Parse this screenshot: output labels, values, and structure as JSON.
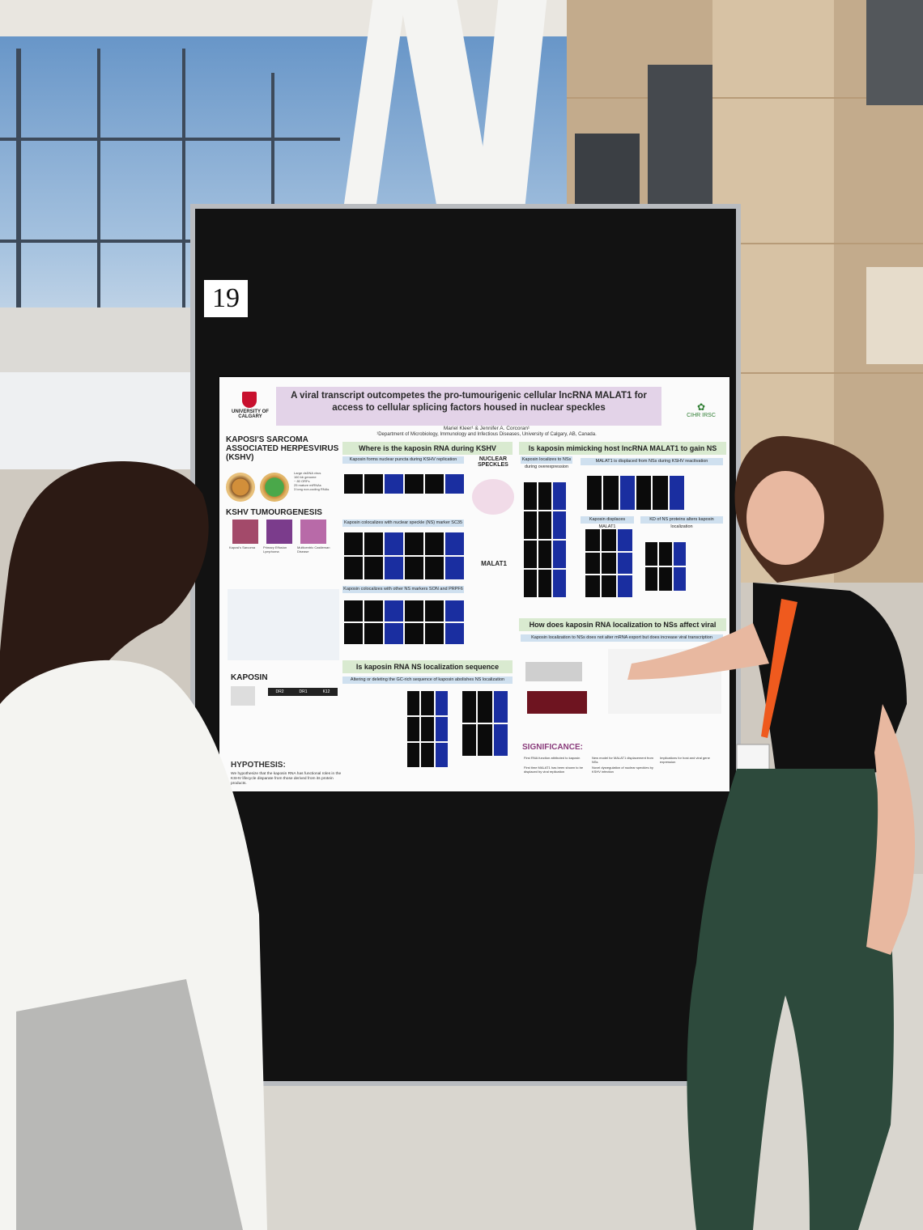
{
  "board": {
    "number": "19"
  },
  "poster": {
    "title": "A viral transcript outcompetes the pro-tumourigenic cellular lncRNA MALAT1 for access to cellular splicing factors housed in nuclear speckles",
    "authors": "Mariel Kleer¹ & Jennifer A. Corcoran¹",
    "department": "¹Department of Microbiology, Immunology and Infectious Diseases, University of Calgary, AB, Canada.",
    "logo_left": "UNIVERSITY OF CALGARY",
    "logo_right": "CIHR IRSC",
    "sections": {
      "kshv": "KAPOSI'S SARCOMA ASSOCIATED HERPESVIRUS (KSHV)",
      "tumourigenesis": "KSHV TUMOURGENESIS",
      "kaposin": "KAPOSIN",
      "hypothesis": "HYPOTHESIS:",
      "hypothesis_text": "We hypothesize that the kaposin RNA has functional roles in the KSHV lifecycle disparate from those derived from its protein products.",
      "where": "Where is the kaposin RNA during KSHV infection?",
      "mimicking": "Is kaposin mimicking host lncRNA MALAT1 to gain NS access?",
      "nuclear_speckles": "NUCLEAR SPECKLES",
      "malat1": "MALAT1",
      "localization": "How does kaposin RNA localization to NSs affect viral replication?",
      "sequence": "Is kaposin RNA NS localization sequence specific?",
      "significance": "SIGNIFICANCE:"
    },
    "subheads": {
      "puncta": "Kaposin forms nuclear puncta during KSHV replication",
      "sc35": "Kaposin colocalizes with nuclear speckle (NS) marker SC35",
      "son": "Kaposin colocalizes with other NS markers SON and PRPF6",
      "overexpression": "Kaposin localizes to NSs during overexpression",
      "displaced": "MALAT1 is displaced from NSs during KSHV reactivation",
      "displaces": "Kaposin displaces MALAT1",
      "kd": "KD of NS proteins alters kaposin localization",
      "export": "Kaposin localization to NSs does not alter mRNA export but does increase viral transcription",
      "gc": "Altering or deleting the GC-rich sequence of kaposin abolishes NS localization"
    },
    "kshv_facts": [
      "Large dsDNA virus",
      "160 kb genome",
      "~ 80 ORFs",
      "25 mature miRNAs",
      "3 long non-coding RNAs"
    ],
    "tumour_labels": [
      "Kaposi's Sarcoma",
      "Primary Effusion Lymphoma",
      "Multicentric Castleman Disease"
    ],
    "kaposin_elements": [
      "DR2",
      "DR1",
      "K12"
    ],
    "significance_items": [
      "First RNA function attributed to kaposin",
      "New model for MALAT1 displacement from NSs",
      "Implications for host and viral gene expression",
      "First time MALAT1 has been shown to be displaced by viral replication",
      "Novel dysregulation of nuclear speckles by KSHV infection"
    ]
  }
}
